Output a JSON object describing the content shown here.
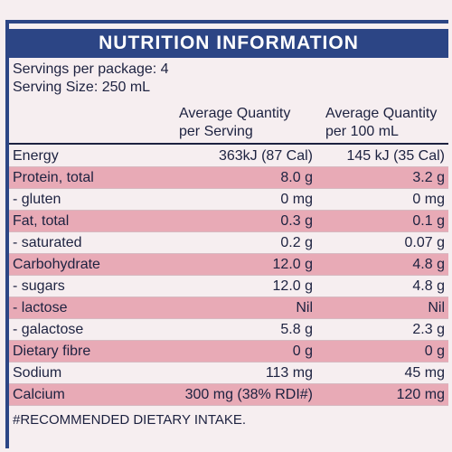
{
  "header": {
    "title": "NUTRITION INFORMATION"
  },
  "servings": [
    "Servings per package: 4",
    "Serving Size: 250 mL"
  ],
  "table": {
    "columns": [
      [
        "Average Quantity",
        "per Serving"
      ],
      [
        "Average Quantity",
        "per 100 mL"
      ]
    ],
    "rows": [
      [
        "Energy",
        "363kJ (87 Cal)",
        "145 kJ (35 Cal)"
      ],
      [
        "Protein, total",
        "8.0 g",
        "3.2 g"
      ],
      [
        "- gluten",
        "0 mg",
        "0 mg"
      ],
      [
        "Fat, total",
        "0.3 g",
        "0.1 g"
      ],
      [
        "- saturated",
        "0.2 g",
        "0.07 g"
      ],
      [
        "Carbohydrate",
        "12.0 g",
        "4.8 g"
      ],
      [
        "- sugars",
        "12.0 g",
        "4.8 g"
      ],
      [
        "- lactose",
        "Nil",
        "Nil"
      ],
      [
        "- galactose",
        "5.8 g",
        "2.3 g"
      ],
      [
        "Dietary fibre",
        "0 g",
        "0 g"
      ],
      [
        "Sodium",
        "113 mg",
        "45 mg"
      ],
      [
        "Calcium",
        "300 mg (38% RDI#)",
        "120 mg"
      ]
    ]
  },
  "footnote": "#RECOMMENDED DIETARY INTAKE."
}
